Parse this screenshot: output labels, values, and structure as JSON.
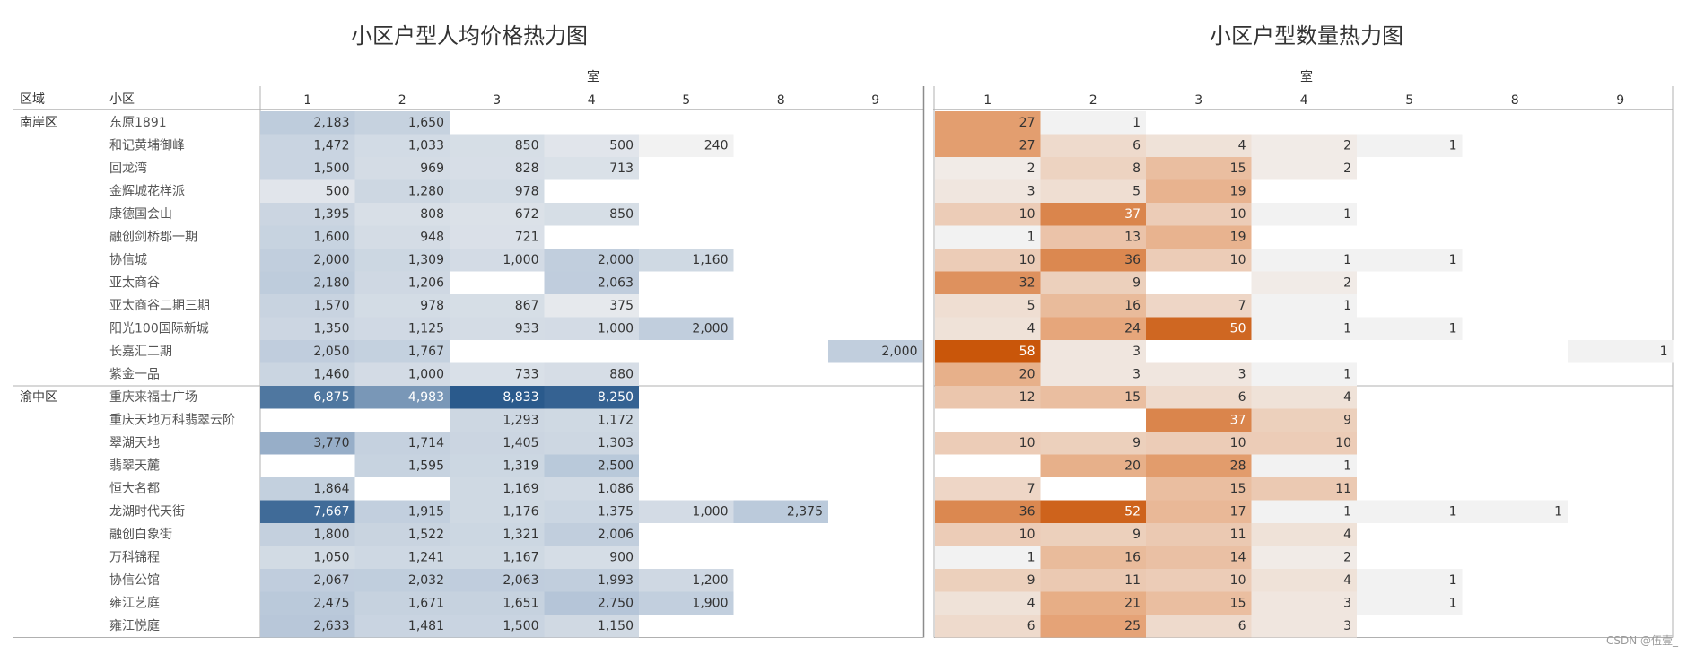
{
  "chart_data": [
    {
      "type": "heatmap",
      "title": "小区户型人均价格热力图",
      "column_header": "室",
      "row_header_1": "区域",
      "row_header_2": "小区",
      "columns": [
        "1",
        "2",
        "3",
        "4",
        "5",
        "8",
        "9"
      ],
      "color_scale": [
        "#f2f2f2",
        "#b7c7d9",
        "#2a5a8c"
      ],
      "value_range": [
        240,
        8833
      ],
      "groups": [
        {
          "region": "南岸区",
          "rows": [
            {
              "name": "东原1891",
              "values": [
                2183,
                1650,
                null,
                null,
                null,
                null,
                null
              ]
            },
            {
              "name": "和记黄埔御峰",
              "values": [
                1472,
                1033,
                850,
                500,
                240,
                null,
                null
              ]
            },
            {
              "name": "回龙湾",
              "values": [
                1500,
                969,
                828,
                713,
                null,
                null,
                null
              ]
            },
            {
              "name": "金辉城花样派",
              "values": [
                500,
                1280,
                978,
                null,
                null,
                null,
                null
              ]
            },
            {
              "name": "康德国会山",
              "values": [
                1395,
                808,
                672,
                850,
                null,
                null,
                null
              ]
            },
            {
              "name": "融创剑桥郡一期",
              "values": [
                1600,
                948,
                721,
                null,
                null,
                null,
                null
              ]
            },
            {
              "name": "协信城",
              "values": [
                2000,
                1309,
                1000,
                2000,
                1160,
                null,
                null
              ]
            },
            {
              "name": "亚太商谷",
              "values": [
                2180,
                1206,
                null,
                2063,
                null,
                null,
                null
              ]
            },
            {
              "name": "亚太商谷二期三期",
              "values": [
                1570,
                978,
                867,
                375,
                null,
                null,
                null
              ]
            },
            {
              "name": "阳光100国际新城",
              "values": [
                1350,
                1125,
                933,
                1000,
                2000,
                null,
                null
              ]
            },
            {
              "name": "长嘉汇二期",
              "values": [
                2050,
                1767,
                null,
                null,
                null,
                null,
                2000
              ]
            },
            {
              "name": "紫金一品",
              "values": [
                1460,
                1000,
                733,
                880,
                null,
                null,
                null
              ]
            }
          ]
        },
        {
          "region": "渝中区",
          "rows": [
            {
              "name": "重庆来福士广场",
              "values": [
                6875,
                4983,
                8833,
                8250,
                null,
                null,
                null
              ]
            },
            {
              "name": "重庆天地万科翡翠云阶",
              "values": [
                null,
                null,
                1293,
                1172,
                null,
                null,
                null
              ]
            },
            {
              "name": "翠湖天地",
              "values": [
                3770,
                1714,
                1405,
                1303,
                null,
                null,
                null
              ]
            },
            {
              "name": "翡翠天麓",
              "values": [
                null,
                1595,
                1319,
                2500,
                null,
                null,
                null
              ]
            },
            {
              "name": "恒大名都",
              "values": [
                1864,
                null,
                1169,
                1086,
                null,
                null,
                null
              ]
            },
            {
              "name": "龙湖时代天街",
              "values": [
                7667,
                1915,
                1176,
                1375,
                1000,
                2375,
                null
              ]
            },
            {
              "name": "融创白象街",
              "values": [
                1800,
                1522,
                1321,
                2006,
                null,
                null,
                null
              ]
            },
            {
              "name": "万科锦程",
              "values": [
                1050,
                1241,
                1167,
                900,
                null,
                null,
                null
              ]
            },
            {
              "name": "协信公馆",
              "values": [
                2067,
                2032,
                2063,
                1993,
                1200,
                null,
                null
              ]
            },
            {
              "name": "雍江艺庭",
              "values": [
                2475,
                1671,
                1651,
                2750,
                1900,
                null,
                null
              ]
            },
            {
              "name": "雍江悦庭",
              "values": [
                2633,
                1481,
                1500,
                1150,
                null,
                null,
                null
              ]
            }
          ]
        }
      ]
    },
    {
      "type": "heatmap",
      "title": "小区户型数量热力图",
      "column_header": "室",
      "columns": [
        "1",
        "2",
        "3",
        "4",
        "5",
        "8",
        "9"
      ],
      "color_scale": [
        "#f2f2f2",
        "#e6a77c",
        "#c9560a"
      ],
      "value_range": [
        1,
        58
      ],
      "values": [
        [
          27,
          1,
          null,
          null,
          null,
          null,
          null
        ],
        [
          27,
          6,
          4,
          2,
          1,
          null,
          null
        ],
        [
          2,
          8,
          15,
          2,
          null,
          null,
          null
        ],
        [
          3,
          5,
          19,
          null,
          null,
          null,
          null
        ],
        [
          10,
          37,
          10,
          1,
          null,
          null,
          null
        ],
        [
          1,
          13,
          19,
          null,
          null,
          null,
          null
        ],
        [
          10,
          36,
          10,
          1,
          1,
          null,
          null
        ],
        [
          32,
          9,
          null,
          2,
          null,
          null,
          null
        ],
        [
          5,
          16,
          7,
          1,
          null,
          null,
          null
        ],
        [
          4,
          24,
          50,
          1,
          1,
          null,
          null
        ],
        [
          58,
          3,
          null,
          null,
          null,
          null,
          1
        ],
        [
          20,
          3,
          3,
          1,
          null,
          null,
          null
        ],
        [
          12,
          15,
          6,
          4,
          null,
          null,
          null
        ],
        [
          null,
          null,
          37,
          9,
          null,
          null,
          null
        ],
        [
          10,
          9,
          10,
          10,
          null,
          null,
          null
        ],
        [
          null,
          20,
          28,
          1,
          null,
          null,
          null
        ],
        [
          7,
          null,
          15,
          11,
          null,
          null,
          null
        ],
        [
          36,
          52,
          17,
          1,
          1,
          1,
          null
        ],
        [
          10,
          9,
          11,
          4,
          null,
          null,
          null
        ],
        [
          1,
          16,
          14,
          2,
          null,
          null,
          null
        ],
        [
          9,
          11,
          10,
          4,
          1,
          null,
          null
        ],
        [
          4,
          21,
          15,
          3,
          1,
          null,
          null
        ],
        [
          6,
          25,
          6,
          3,
          null,
          null,
          null
        ]
      ]
    }
  ],
  "watermark": "CSDN @伍壹_"
}
